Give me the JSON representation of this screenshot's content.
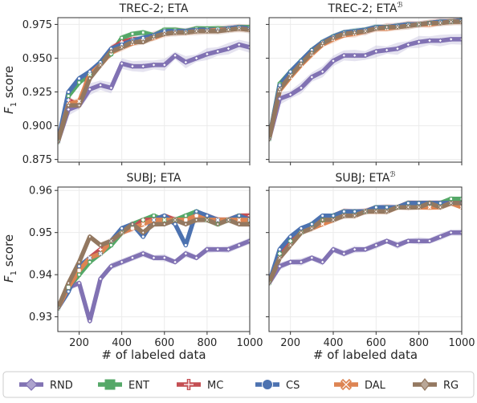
{
  "figure": {
    "x_tick_labels": [
      "200",
      "400",
      "600",
      "800",
      "1000"
    ],
    "ylabel_main": "F",
    "ylabel_sub": "1",
    "ylabel_rest": " score",
    "xlabel": "# of labeled data"
  },
  "legend": {
    "placement": "bottom",
    "entries": [
      {
        "label": "RND",
        "color": "#8172b3",
        "marker": "diamond"
      },
      {
        "label": "ENT",
        "color": "#55a868",
        "marker": "square"
      },
      {
        "label": "MC",
        "color": "#c44e52",
        "marker": "plus"
      },
      {
        "label": "CS",
        "color": "#4c72b0",
        "marker": "circle"
      },
      {
        "label": "DAL",
        "color": "#dd8452",
        "marker": "x"
      },
      {
        "label": "RG",
        "color": "#937860",
        "marker": "thin-diamond"
      }
    ]
  },
  "chart_data": [
    {
      "type": "line",
      "title": "TREC-2; ETA",
      "title_superscript": "",
      "xlim": [
        100,
        1000
      ],
      "ylim": [
        0.873,
        0.98
      ],
      "y_ticks": [
        0.875,
        0.9,
        0.925,
        0.95,
        0.975
      ],
      "y_tick_labels": [
        "0.875",
        "0.900",
        "0.925",
        "0.950",
        "0.975"
      ],
      "grid": true,
      "x": [
        100,
        150,
        200,
        250,
        300,
        350,
        400,
        450,
        500,
        550,
        600,
        650,
        700,
        750,
        800,
        850,
        900,
        950,
        1000
      ],
      "series": [
        {
          "name": "RND",
          "values": [
            0.888,
            0.912,
            0.915,
            0.927,
            0.93,
            0.928,
            0.946,
            0.944,
            0.944,
            0.945,
            0.945,
            0.952,
            0.947,
            0.95,
            0.953,
            0.955,
            0.957,
            0.96,
            0.958
          ]
        },
        {
          "name": "ENT",
          "values": [
            0.888,
            0.922,
            0.932,
            0.938,
            0.947,
            0.953,
            0.965,
            0.968,
            0.969,
            0.967,
            0.971,
            0.971,
            0.97,
            0.972,
            0.972,
            0.972,
            0.972,
            0.973,
            0.973
          ]
        },
        {
          "name": "MC",
          "values": [
            0.888,
            0.919,
            0.915,
            0.94,
            0.945,
            0.957,
            0.962,
            0.964,
            0.964,
            0.967,
            0.97,
            0.97,
            0.97,
            0.971,
            0.971,
            0.971,
            0.972,
            0.973,
            0.972
          ]
        },
        {
          "name": "CS",
          "values": [
            0.888,
            0.925,
            0.935,
            0.94,
            0.947,
            0.957,
            0.96,
            0.963,
            0.965,
            0.967,
            0.97,
            0.97,
            0.97,
            0.971,
            0.971,
            0.971,
            0.972,
            0.973,
            0.972
          ]
        },
        {
          "name": "DAL",
          "values": [
            0.888,
            0.916,
            0.918,
            0.938,
            0.945,
            0.954,
            0.958,
            0.961,
            0.963,
            0.965,
            0.968,
            0.969,
            0.969,
            0.97,
            0.97,
            0.971,
            0.971,
            0.972,
            0.971
          ]
        },
        {
          "name": "RG",
          "values": [
            0.888,
            0.915,
            0.915,
            0.935,
            0.945,
            0.955,
            0.958,
            0.962,
            0.962,
            0.966,
            0.968,
            0.969,
            0.969,
            0.97,
            0.97,
            0.97,
            0.971,
            0.972,
            0.971
          ]
        }
      ]
    },
    {
      "type": "line",
      "title": "TREC-2; ETA",
      "title_superscript": "ℬ",
      "xlim": [
        100,
        1000
      ],
      "ylim": [
        0.873,
        0.98
      ],
      "y_ticks": [
        0.875,
        0.9,
        0.925,
        0.95,
        0.975
      ],
      "y_tick_labels": [
        "",
        "",
        "",
        "",
        ""
      ],
      "grid": true,
      "x": [
        100,
        150,
        200,
        250,
        300,
        350,
        400,
        450,
        500,
        550,
        600,
        650,
        700,
        750,
        800,
        850,
        900,
        950,
        1000
      ],
      "series": [
        {
          "name": "RND",
          "values": [
            0.89,
            0.92,
            0.923,
            0.928,
            0.936,
            0.94,
            0.948,
            0.952,
            0.952,
            0.952,
            0.955,
            0.956,
            0.957,
            0.96,
            0.962,
            0.963,
            0.963,
            0.964,
            0.964
          ]
        },
        {
          "name": "ENT",
          "values": [
            0.89,
            0.931,
            0.94,
            0.948,
            0.956,
            0.962,
            0.966,
            0.969,
            0.97,
            0.971,
            0.973,
            0.973,
            0.974,
            0.975,
            0.975,
            0.976,
            0.977,
            0.977,
            0.978
          ]
        },
        {
          "name": "MC",
          "values": [
            0.89,
            0.928,
            0.938,
            0.946,
            0.954,
            0.961,
            0.965,
            0.968,
            0.969,
            0.97,
            0.972,
            0.973,
            0.974,
            0.975,
            0.975,
            0.976,
            0.977,
            0.977,
            0.978
          ]
        },
        {
          "name": "CS",
          "values": [
            0.89,
            0.93,
            0.94,
            0.948,
            0.956,
            0.962,
            0.966,
            0.969,
            0.97,
            0.971,
            0.973,
            0.973,
            0.974,
            0.975,
            0.975,
            0.976,
            0.977,
            0.977,
            0.978
          ]
        },
        {
          "name": "DAL",
          "values": [
            0.89,
            0.926,
            0.936,
            0.945,
            0.953,
            0.96,
            0.964,
            0.967,
            0.968,
            0.97,
            0.972,
            0.972,
            0.973,
            0.974,
            0.975,
            0.975,
            0.976,
            0.977,
            0.977
          ]
        },
        {
          "name": "RG",
          "values": [
            0.89,
            0.927,
            0.937,
            0.946,
            0.954,
            0.961,
            0.965,
            0.968,
            0.969,
            0.97,
            0.972,
            0.973,
            0.973,
            0.974,
            0.975,
            0.976,
            0.976,
            0.977,
            0.977
          ]
        }
      ]
    },
    {
      "type": "line",
      "title": "SUBJ; ETA",
      "title_superscript": "",
      "xlim": [
        100,
        1000
      ],
      "ylim": [
        0.9265,
        0.9608
      ],
      "y_ticks": [
        0.93,
        0.94,
        0.95,
        0.96
      ],
      "y_tick_labels": [
        "0.93",
        "0.94",
        "0.95",
        "0.96"
      ],
      "grid": true,
      "x": [
        100,
        150,
        200,
        250,
        300,
        350,
        400,
        450,
        500,
        550,
        600,
        650,
        700,
        750,
        800,
        850,
        900,
        950,
        1000
      ],
      "series": [
        {
          "name": "RND",
          "values": [
            0.932,
            0.937,
            0.938,
            0.929,
            0.939,
            0.942,
            0.943,
            0.944,
            0.945,
            0.944,
            0.944,
            0.943,
            0.945,
            0.944,
            0.946,
            0.946,
            0.946,
            0.947,
            0.948
          ]
        },
        {
          "name": "ENT",
          "values": [
            0.932,
            0.937,
            0.94,
            0.943,
            0.945,
            0.947,
            0.95,
            0.952,
            0.953,
            0.954,
            0.953,
            0.953,
            0.954,
            0.955,
            0.953,
            0.952,
            0.953,
            0.954,
            0.953
          ]
        },
        {
          "name": "MC",
          "values": [
            0.932,
            0.937,
            0.941,
            0.944,
            0.946,
            0.948,
            0.95,
            0.951,
            0.953,
            0.953,
            0.954,
            0.953,
            0.953,
            0.954,
            0.954,
            0.953,
            0.953,
            0.954,
            0.954
          ]
        },
        {
          "name": "CS",
          "values": [
            0.932,
            0.936,
            0.942,
            0.944,
            0.945,
            0.948,
            0.951,
            0.952,
            0.949,
            0.953,
            0.954,
            0.952,
            0.947,
            0.955,
            0.954,
            0.953,
            0.953,
            0.954,
            0.953
          ]
        },
        {
          "name": "DAL",
          "values": [
            0.932,
            0.937,
            0.941,
            0.944,
            0.945,
            0.948,
            0.95,
            0.951,
            0.952,
            0.953,
            0.953,
            0.953,
            0.953,
            0.954,
            0.953,
            0.953,
            0.953,
            0.953,
            0.953
          ]
        },
        {
          "name": "RG",
          "values": [
            0.932,
            0.938,
            0.943,
            0.949,
            0.947,
            0.948,
            0.95,
            0.952,
            0.95,
            0.952,
            0.952,
            0.953,
            0.952,
            0.953,
            0.953,
            0.952,
            0.953,
            0.952,
            0.952
          ]
        }
      ]
    },
    {
      "type": "line",
      "title": "SUBJ; ETA",
      "title_superscript": "ℬ",
      "xlim": [
        100,
        1000
      ],
      "ylim": [
        0.9265,
        0.9608
      ],
      "y_ticks": [
        0.93,
        0.94,
        0.95,
        0.96
      ],
      "y_tick_labels": [
        "",
        "",
        "",
        ""
      ],
      "grid": true,
      "x": [
        100,
        150,
        200,
        250,
        300,
        350,
        400,
        450,
        500,
        550,
        600,
        650,
        700,
        750,
        800,
        850,
        900,
        950,
        1000
      ],
      "series": [
        {
          "name": "RND",
          "values": [
            0.938,
            0.942,
            0.943,
            0.943,
            0.944,
            0.943,
            0.946,
            0.945,
            0.946,
            0.946,
            0.947,
            0.948,
            0.947,
            0.948,
            0.948,
            0.948,
            0.949,
            0.95,
            0.95
          ]
        },
        {
          "name": "ENT",
          "values": [
            0.938,
            0.945,
            0.948,
            0.95,
            0.952,
            0.953,
            0.954,
            0.955,
            0.955,
            0.955,
            0.956,
            0.956,
            0.956,
            0.957,
            0.957,
            0.957,
            0.957,
            0.958,
            0.958
          ]
        },
        {
          "name": "MC",
          "values": [
            0.938,
            0.945,
            0.948,
            0.95,
            0.952,
            0.953,
            0.954,
            0.955,
            0.955,
            0.955,
            0.956,
            0.956,
            0.956,
            0.957,
            0.957,
            0.957,
            0.957,
            0.957,
            0.957
          ]
        },
        {
          "name": "CS",
          "values": [
            0.938,
            0.946,
            0.949,
            0.951,
            0.952,
            0.954,
            0.954,
            0.955,
            0.955,
            0.955,
            0.956,
            0.956,
            0.956,
            0.957,
            0.957,
            0.957,
            0.957,
            0.957,
            0.957
          ]
        },
        {
          "name": "DAL",
          "values": [
            0.938,
            0.944,
            0.947,
            0.95,
            0.951,
            0.952,
            0.953,
            0.954,
            0.954,
            0.955,
            0.955,
            0.955,
            0.956,
            0.956,
            0.956,
            0.956,
            0.956,
            0.957,
            0.956
          ]
        },
        {
          "name": "RG",
          "values": [
            0.938,
            0.944,
            0.947,
            0.95,
            0.951,
            0.953,
            0.953,
            0.954,
            0.954,
            0.955,
            0.955,
            0.955,
            0.956,
            0.956,
            0.956,
            0.957,
            0.956,
            0.957,
            0.957
          ]
        }
      ]
    }
  ]
}
